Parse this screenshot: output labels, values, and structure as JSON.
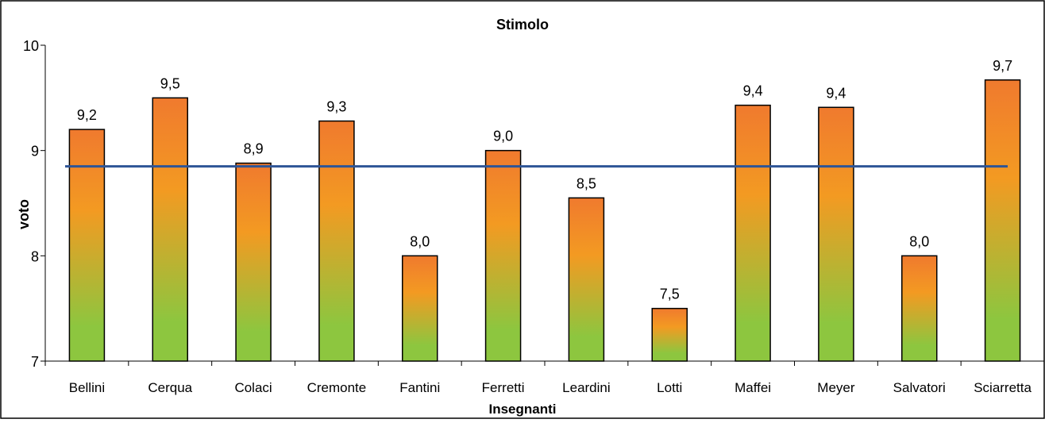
{
  "chart_data": {
    "type": "bar",
    "title": "Stimolo",
    "xlabel": "Insegnanti",
    "ylabel": "voto",
    "categories": [
      "Bellini",
      "Cerqua",
      "Colaci",
      "Cremonte",
      "Fantini",
      "Ferretti",
      "Leardini",
      "Lotti",
      "Maffei",
      "Meyer",
      "Salvatori",
      "Sciarretta"
    ],
    "values": [
      9.2,
      9.5,
      8.88,
      9.28,
      8.0,
      9.0,
      8.55,
      7.5,
      9.43,
      9.41,
      8.0,
      9.67
    ],
    "data_labels": [
      "9,2",
      "9,5",
      "8,9",
      "9,3",
      "8,0",
      "9,0",
      "8,5",
      "7,5",
      "9,4",
      "9,4",
      "8,0",
      "9,7"
    ],
    "ylim": [
      7,
      10
    ],
    "yticks": [
      "7",
      "8",
      "9",
      "10"
    ],
    "reference_line": 8.85,
    "grid": false,
    "legend": false,
    "colors": {
      "bar_top": "#F07A2E",
      "bar_mid": "#F39A22",
      "bar_bottom": "#8DC63F",
      "bar_outline": "#000000",
      "reference_line": "#2E5597"
    }
  }
}
